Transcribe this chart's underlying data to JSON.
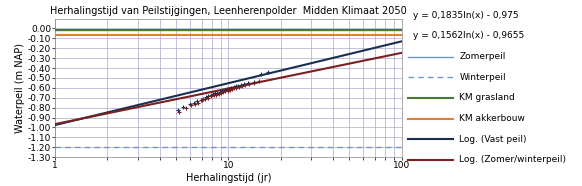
{
  "title": "Herhalingstijd van Peilstijgingen, Leenherenpolder  Midden Klimaat 2050",
  "xlabel": "Herhalingstijd (jr)",
  "ylabel": "Waterpeil (m NAP)",
  "xlim": [
    1,
    100
  ],
  "ylim": [
    -1.3,
    0.1
  ],
  "yticks": [
    0.0,
    -0.1,
    -0.2,
    -0.3,
    -0.4,
    -0.5,
    -0.6,
    -0.7,
    -0.8,
    -0.9,
    -1.0,
    -1.1,
    -1.2,
    -1.3
  ],
  "zomerpeil": -0.02,
  "winterpeil": -1.2,
  "km_grasland": -0.02,
  "km_akkerbouw": -0.07,
  "log_vast_a": 0.1835,
  "log_vast_b": -0.975,
  "log_zomer_a": 0.1562,
  "log_zomer_b": -0.9655,
  "eq1": "y = 0,1835ln(x) - 0,975",
  "eq2": "y = 0,1562ln(x) - 0,9655",
  "scatter_vast": [
    [
      5.1,
      -0.828
    ],
    [
      5.5,
      -0.795
    ],
    [
      6.0,
      -0.762
    ],
    [
      6.3,
      -0.748
    ],
    [
      6.6,
      -0.733
    ],
    [
      6.9,
      -0.718
    ],
    [
      7.1,
      -0.708
    ],
    [
      7.4,
      -0.695
    ],
    [
      7.6,
      -0.686
    ],
    [
      7.9,
      -0.674
    ],
    [
      8.1,
      -0.666
    ],
    [
      8.4,
      -0.656
    ],
    [
      8.6,
      -0.649
    ],
    [
      8.9,
      -0.639
    ],
    [
      9.2,
      -0.63
    ],
    [
      9.5,
      -0.622
    ],
    [
      9.8,
      -0.614
    ],
    [
      10.1,
      -0.607
    ],
    [
      10.4,
      -0.6
    ],
    [
      10.7,
      -0.593
    ],
    [
      11.0,
      -0.586
    ],
    [
      11.4,
      -0.578
    ],
    [
      11.8,
      -0.57
    ],
    [
      12.3,
      -0.561
    ],
    [
      13.0,
      -0.549
    ],
    [
      14.0,
      -0.537
    ],
    [
      15.5,
      -0.456
    ],
    [
      17.0,
      -0.44
    ]
  ],
  "scatter_zomer": [
    [
      5.2,
      -0.84
    ],
    [
      5.7,
      -0.806
    ],
    [
      6.1,
      -0.776
    ],
    [
      6.4,
      -0.762
    ],
    [
      6.7,
      -0.748
    ],
    [
      7.0,
      -0.72
    ],
    [
      7.3,
      -0.71
    ],
    [
      7.6,
      -0.698
    ],
    [
      7.9,
      -0.686
    ],
    [
      8.2,
      -0.676
    ],
    [
      8.5,
      -0.667
    ],
    [
      8.8,
      -0.659
    ],
    [
      9.0,
      -0.652
    ],
    [
      9.3,
      -0.643
    ],
    [
      9.6,
      -0.635
    ],
    [
      9.9,
      -0.627
    ],
    [
      10.2,
      -0.62
    ],
    [
      10.5,
      -0.613
    ],
    [
      10.8,
      -0.606
    ],
    [
      11.1,
      -0.599
    ],
    [
      11.5,
      -0.59
    ],
    [
      12.0,
      -0.581
    ],
    [
      12.5,
      -0.57
    ],
    [
      13.2,
      -0.558
    ],
    [
      14.0,
      -0.547
    ],
    [
      15.0,
      -0.53
    ]
  ],
  "color_zomerpeil": "#7096C8",
  "color_winterpeil": "#7096C8",
  "color_grasland": "#4A7A3A",
  "color_akkerbouw": "#E08030",
  "color_log_vast": "#1A2E50",
  "color_log_zomer": "#7A2020",
  "color_scatter_vast": "#1A2E50",
  "color_scatter_zomer": "#7A2020",
  "bg_color": "#FFFFFF",
  "grid_color": "#AAAACC"
}
